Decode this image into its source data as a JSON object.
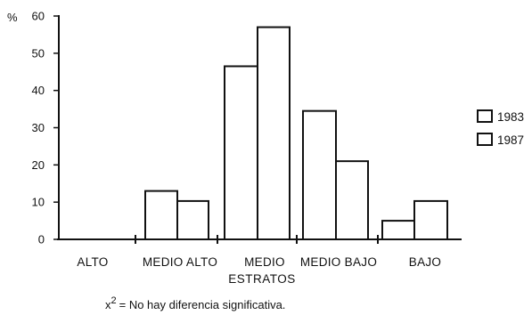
{
  "chart_data": {
    "type": "bar",
    "ylabel": "%",
    "xlabel": "ESTRATOS",
    "ylim": [
      0,
      60
    ],
    "yticks": [
      0,
      10,
      20,
      30,
      40,
      50,
      60
    ],
    "grid": false,
    "legend_position": "right",
    "categories": [
      "ALTO",
      "MEDIO ALTO",
      "MEDIO",
      "MEDIO BAJO",
      "BAJO"
    ],
    "series": [
      {
        "name": "1983",
        "values": [
          0,
          13,
          46.5,
          34.5,
          5
        ]
      },
      {
        "name": "1987",
        "values": [
          0,
          10.3,
          57,
          21,
          10.3
        ]
      }
    ],
    "note": {
      "symbol": "x",
      "exponent": "2",
      "text": "= No hay diferencia significativa."
    },
    "colors": {
      "bar_fill": "#ffffff",
      "stroke": "#111111"
    }
  }
}
